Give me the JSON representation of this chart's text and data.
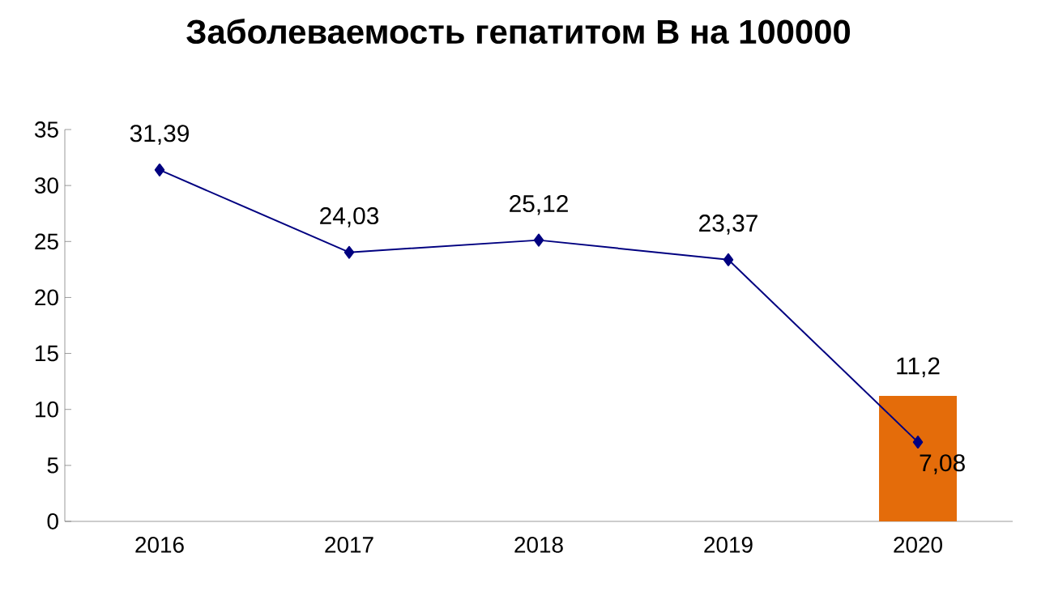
{
  "chart_data": {
    "type": "line",
    "title": "Заболеваемость гепатитом В на 100000",
    "categories": [
      "2016",
      "2017",
      "2018",
      "2019",
      "2020"
    ],
    "series": [
      {
        "type": "bar",
        "color": "#e46c0a",
        "values": [
          null,
          null,
          null,
          null,
          11.2
        ],
        "value_labels": [
          null,
          null,
          null,
          null,
          "11,2"
        ]
      },
      {
        "color": "#000080",
        "values": [
          31.39,
          24.03,
          25.12,
          23.37,
          7.08
        ],
        "value_labels": [
          "31,39",
          "24,03",
          "25,12",
          "23,37",
          "7,08"
        ],
        "marker": "diamond"
      }
    ],
    "ylim": [
      0,
      35
    ],
    "yticks": [
      0,
      5,
      10,
      15,
      20,
      25,
      30,
      35
    ],
    "grid": false
  }
}
